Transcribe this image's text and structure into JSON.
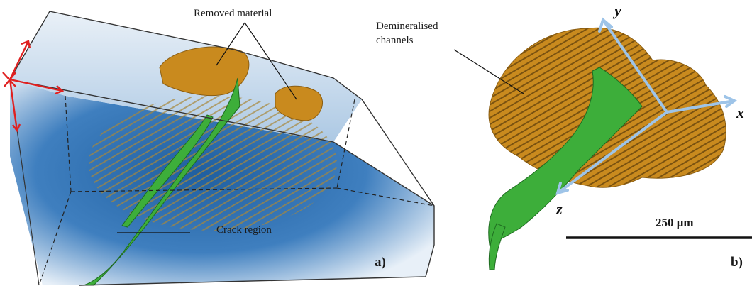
{
  "panel_a": {
    "annotations": {
      "removed_material": "Removed material",
      "crack_region": "Crack region"
    },
    "panel_label": "a)"
  },
  "panel_b": {
    "annotations": {
      "demineralised_channels": "Demineralised\nchannels"
    },
    "axes": {
      "x": "x",
      "y": "y",
      "z": "z"
    },
    "scale_bar": {
      "label": "250 μm"
    },
    "panel_label": "b)"
  },
  "colors": {
    "removed_material": "#c98a1e",
    "crack": "#3dae3a",
    "volume_box": "#2f6fae",
    "axes_light_blue": "#9ec4e8",
    "axes_red": "#e02020"
  }
}
